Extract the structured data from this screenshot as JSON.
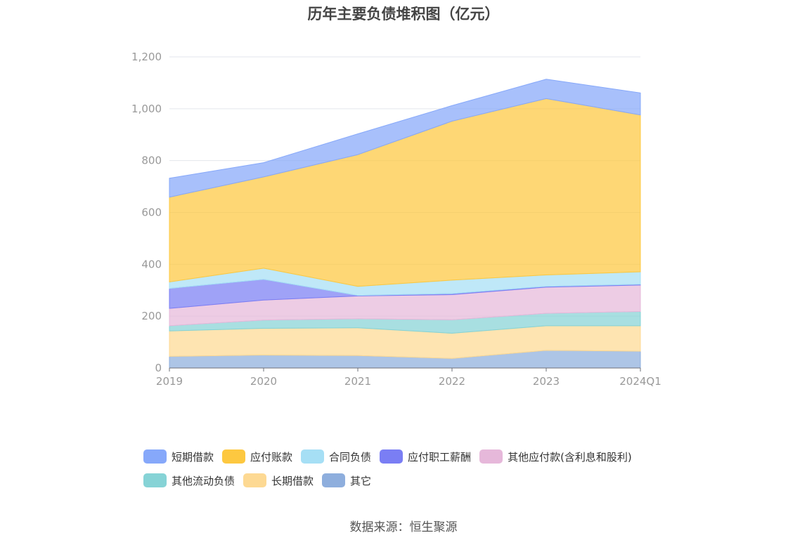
{
  "chart_data": {
    "type": "area",
    "stacked": true,
    "title": "历年主要负债堆积图（亿元）",
    "categories": [
      "2019",
      "2020",
      "2021",
      "2022",
      "2023",
      "2024Q1"
    ],
    "ylim": [
      0,
      1200
    ],
    "yticks": [
      "0",
      "200",
      "400",
      "600",
      "800",
      "1,000",
      "1,200"
    ],
    "ytick_values": [
      0,
      200,
      400,
      600,
      800,
      1000,
      1200
    ],
    "grid": true,
    "legend_position": "bottom",
    "series": [
      {
        "name": "其它",
        "color": "#8eaedd",
        "values": [
          45,
          50,
          48,
          37,
          68,
          65
        ]
      },
      {
        "name": "长期借款",
        "color": "#fdd993",
        "values": [
          98,
          103,
          107,
          97,
          95,
          98
        ]
      },
      {
        "name": "其他流动负债",
        "color": "#86d3d6",
        "values": [
          20,
          32,
          35,
          52,
          48,
          55
        ]
      },
      {
        "name": "其他应付款(含利息和股利)",
        "color": "#e6b8da",
        "values": [
          67,
          77,
          88,
          97,
          101,
          102
        ]
      },
      {
        "name": "应付职工薪酬",
        "color": "#7a7ef4",
        "values": [
          77,
          80,
          2,
          4,
          3,
          3
        ]
      },
      {
        "name": "合同负债",
        "color": "#a6dff5",
        "values": [
          25,
          43,
          35,
          52,
          44,
          48
        ]
      },
      {
        "name": "应付账款",
        "color": "#fdc840",
        "values": [
          327,
          352,
          508,
          613,
          680,
          605
        ]
      },
      {
        "name": "短期借款",
        "color": "#86a8fa",
        "values": [
          73,
          55,
          80,
          60,
          75,
          85
        ]
      }
    ],
    "legend_order": [
      "短期借款",
      "应付账款",
      "合同负债",
      "应付职工薪酬",
      "其他应付款(含利息和股利)",
      "其他流动负债",
      "长期借款",
      "其它"
    ]
  },
  "footer": {
    "source": "数据来源：恒生聚源"
  }
}
